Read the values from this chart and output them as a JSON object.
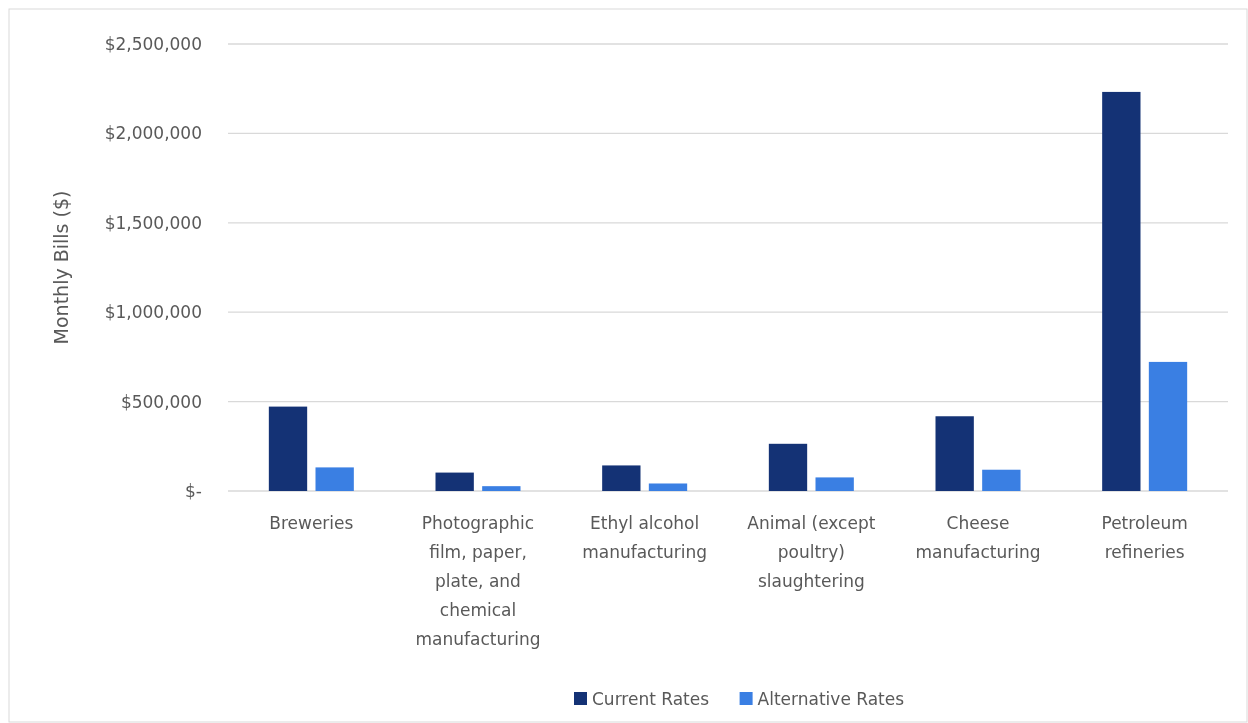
{
  "chart_data": {
    "type": "bar",
    "ylabel": "Monthly Bills ($)",
    "categories": [
      "Breweries",
      "Photographic film, paper, plate, and chemical manufacturing",
      "Ethyl alcohol manufacturing",
      "Animal (except poultry) slaughtering",
      "Cheese manufacturing",
      "Petroleum refineries"
    ],
    "series": [
      {
        "name": "Current Rates",
        "color": "#143275",
        "values": [
          472000,
          103000,
          143000,
          264000,
          418000,
          2232000
        ]
      },
      {
        "name": "Alternative Rates",
        "color": "#3a7fe3",
        "values": [
          132000,
          27000,
          42000,
          76000,
          119000,
          722000
        ]
      }
    ],
    "ylim": [
      0,
      2500000
    ],
    "yticks": [
      {
        "value": 0,
        "label": "$-"
      },
      {
        "value": 500000,
        "label": "$500,000"
      },
      {
        "value": 1000000,
        "label": "$1,000,000"
      },
      {
        "value": 1500000,
        "label": "$1,500,000"
      },
      {
        "value": 2000000,
        "label": "$2,000,000"
      },
      {
        "value": 2500000,
        "label": "$2,500,000"
      }
    ],
    "grid": "y",
    "legend": "bottom"
  }
}
